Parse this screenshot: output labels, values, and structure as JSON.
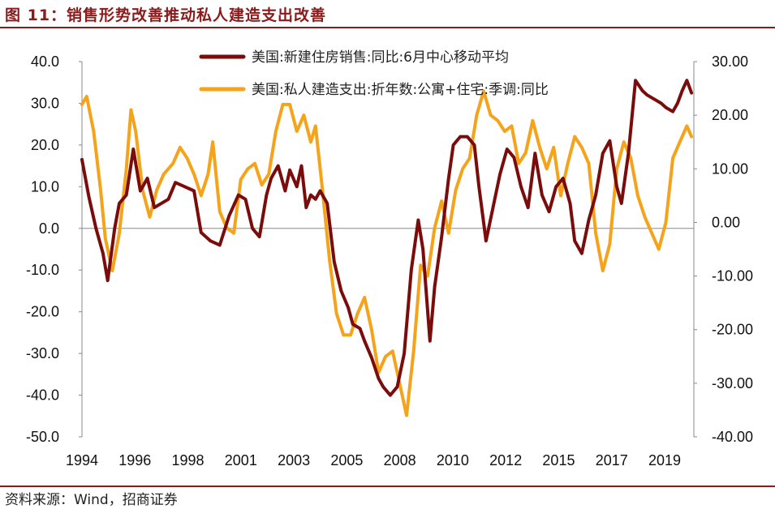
{
  "header": {
    "title": "图 11：销售形势改善推动私人建造支出改善"
  },
  "footer": {
    "source": "资料来源：Wind，招商证券"
  },
  "colors": {
    "series1": "#7b0c0c",
    "series2": "#f5a31a",
    "rule": "#8b1a1a"
  },
  "chart_data": {
    "type": "line",
    "x_ticks": [
      "1994",
      "1996",
      "1998",
      "2001",
      "2003",
      "2005",
      "2008",
      "2010",
      "2012",
      "2015",
      "2017",
      "2019"
    ],
    "x_range": [
      1994.0,
      2020.2
    ],
    "y_left": {
      "range": [
        -50,
        40
      ],
      "ticks": [
        "40.0",
        "30.0",
        "20.0",
        "10.0",
        "0.0",
        "-10.0",
        "-20.0",
        "-30.0",
        "-40.0",
        "-50.0"
      ]
    },
    "y_right": {
      "range": [
        -40,
        30
      ],
      "ticks": [
        "30.00",
        "20.00",
        "10.00",
        "0.00",
        "-10.00",
        "-20.00",
        "-30.00",
        "-40.00"
      ]
    },
    "legend": [
      "美国:新建住房销售:同比:6月中心移动平均",
      "美国:私人建造支出:折年数:公寓+住宅:季调:同比"
    ],
    "series": [
      {
        "name": "美国:新建住房销售:同比:6月中心移动平均",
        "axis": "left",
        "x": [
          1994.0,
          1994.3,
          1994.6,
          1994.9,
          1995.1,
          1995.4,
          1995.6,
          1995.9,
          1996.2,
          1996.5,
          1996.8,
          1997.1,
          1997.4,
          1997.7,
          1998.0,
          1998.4,
          1998.8,
          1999.1,
          1999.5,
          1999.9,
          2000.3,
          2000.7,
          2001.0,
          2001.3,
          2001.6,
          2001.9,
          2002.1,
          2002.4,
          2002.7,
          2002.9,
          2003.2,
          2003.4,
          2003.6,
          2003.8,
          2004.0,
          2004.2,
          2004.5,
          2004.8,
          2005.1,
          2005.4,
          2005.6,
          2005.9,
          2006.1,
          2006.4,
          2006.7,
          2006.9,
          2007.2,
          2007.5,
          2007.8,
          2008.1,
          2008.4,
          2008.6,
          2008.9,
          2009.1,
          2009.4,
          2009.7,
          2009.9,
          2010.2,
          2010.5,
          2010.8,
          2011.0,
          2011.3,
          2011.6,
          2011.9,
          2012.2,
          2012.5,
          2012.8,
          2013.1,
          2013.4,
          2013.7,
          2014.0,
          2014.3,
          2014.6,
          2014.9,
          2015.1,
          2015.4,
          2015.7,
          2016.0,
          2016.3,
          2016.6,
          2016.9,
          2017.1,
          2017.4,
          2017.7,
          2018.0,
          2018.2,
          2018.5,
          2018.8,
          2019.0,
          2019.3,
          2019.5,
          2019.7,
          2019.9,
          2020.1
        ],
        "y": [
          16.5,
          7.5,
          0,
          -6,
          -12.5,
          0,
          6,
          8,
          19,
          9,
          12,
          5,
          6,
          7,
          11,
          10,
          9,
          -1,
          -3,
          -4,
          3,
          8,
          7,
          0,
          -2,
          8,
          12,
          15,
          9,
          14,
          10,
          15,
          5,
          8,
          7,
          9,
          6,
          -8,
          -15,
          -19,
          -23,
          -24,
          -27,
          -31,
          -36,
          -38,
          -40,
          -38,
          -30,
          -10,
          2,
          -5,
          -27,
          -14,
          -2,
          12,
          20,
          22,
          22,
          20,
          10,
          -3,
          5,
          13,
          19,
          17,
          10,
          5,
          18,
          8,
          4,
          10,
          12,
          6,
          -3,
          -6,
          2,
          8,
          18,
          21,
          10,
          6,
          18,
          35.5,
          33,
          32,
          31,
          30,
          29,
          28,
          30,
          33,
          35.5,
          32.5
        ]
      },
      {
        "name": "美国:私人建造支出:折年数:公寓+住宅:季调:同比",
        "axis": "right",
        "x": [
          1994.0,
          1994.2,
          1994.5,
          1994.8,
          1995.0,
          1995.3,
          1995.6,
          1995.9,
          1996.1,
          1996.3,
          1996.6,
          1996.9,
          1997.2,
          1997.5,
          1997.9,
          1998.2,
          1998.5,
          1998.8,
          1999.1,
          1999.4,
          1999.6,
          1999.9,
          2000.2,
          2000.5,
          2000.8,
          2001.1,
          2001.4,
          2001.7,
          2002.0,
          2002.3,
          2002.6,
          2002.9,
          2003.2,
          2003.5,
          2003.8,
          2004.0,
          2004.3,
          2004.6,
          2004.9,
          2005.2,
          2005.5,
          2005.8,
          2006.1,
          2006.4,
          2006.7,
          2007.0,
          2007.3,
          2007.6,
          2007.9,
          2008.2,
          2008.5,
          2008.8,
          2009.1,
          2009.4,
          2009.7,
          2010.0,
          2010.3,
          2010.6,
          2010.9,
          2011.2,
          2011.5,
          2011.8,
          2012.1,
          2012.4,
          2012.7,
          2013.0,
          2013.3,
          2013.6,
          2013.9,
          2014.2,
          2014.5,
          2014.8,
          2015.1,
          2015.4,
          2015.7,
          2016.0,
          2016.3,
          2016.6,
          2016.9,
          2017.2,
          2017.5,
          2017.8,
          2018.1,
          2018.4,
          2018.7,
          2019.0,
          2019.3,
          2019.6,
          2019.9,
          2020.1
        ],
        "y": [
          22,
          23.5,
          17,
          6,
          -3,
          -9,
          -2,
          10,
          21,
          17,
          6,
          1,
          6,
          9,
          11,
          14,
          12,
          9,
          5,
          9,
          15,
          2,
          -1,
          -2,
          8,
          10,
          11,
          7,
          9,
          17,
          22,
          22,
          17,
          20,
          15,
          18,
          6,
          -7,
          -17,
          -21,
          -21,
          -17,
          -14,
          -20,
          -28,
          -25,
          -24,
          -30,
          -36,
          -24,
          -8,
          -10,
          -1,
          4,
          -2,
          6,
          10,
          12,
          20,
          24.5,
          20,
          19,
          17,
          18,
          11,
          13,
          19,
          14,
          10,
          14,
          5,
          11,
          16,
          14,
          11,
          -2,
          -9,
          -4,
          10,
          15,
          12,
          5,
          1,
          -2,
          -5,
          0,
          12,
          15,
          18,
          16
        ]
      }
    ]
  }
}
